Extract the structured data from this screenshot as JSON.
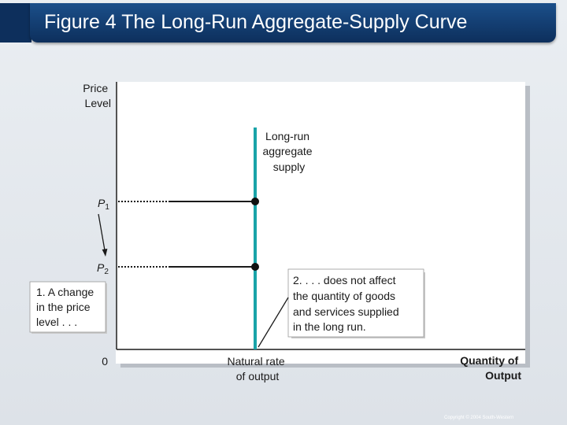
{
  "slide": {
    "title": "Figure 4 The Long-Run Aggregate-Supply Curve",
    "copyright": "Copyright © 2004 South-Western"
  },
  "axes": {
    "y_label": [
      "Price",
      "Level"
    ],
    "x_label": [
      "Quantity of",
      "Output"
    ],
    "origin": "0"
  },
  "curve": {
    "label": [
      "Long-run",
      "aggregate",
      "supply"
    ]
  },
  "price_levels": {
    "p1": {
      "letter": "P",
      "sub": "1"
    },
    "p2": {
      "letter": "P",
      "sub": "2"
    }
  },
  "x_marker": [
    "Natural rate",
    "of output"
  ],
  "annotations": {
    "left": [
      "1. A change",
      "in the price",
      "level . . ."
    ],
    "right": [
      "2. . . . does not affect",
      "the quantity of goods",
      "and services supplied",
      "in the long run."
    ]
  },
  "colors": {
    "title_bar": "#123c6e",
    "curve": "#19a3a8",
    "axis": "#1a1a1a",
    "plot_bg": "#ffffff"
  }
}
